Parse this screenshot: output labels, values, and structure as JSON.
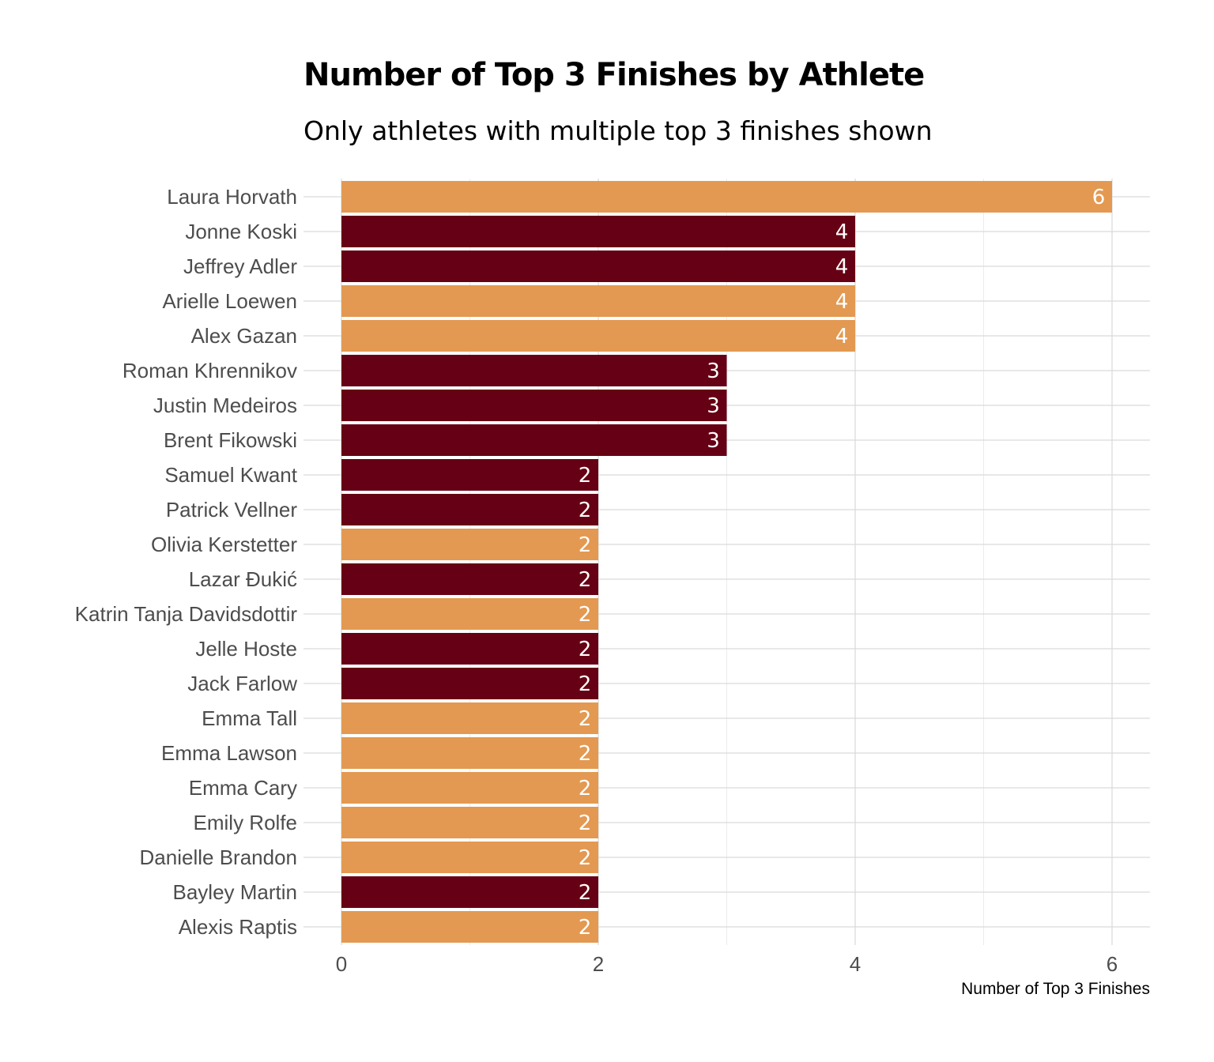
{
  "chart_data": {
    "type": "bar",
    "orientation": "horizontal",
    "title": "Number of Top 3 Finishes by Athlete",
    "subtitle": "Only athletes with multiple top 3 finishes shown",
    "xlabel": "Number of Top 3 Finishes",
    "ylabel": "",
    "xlim": [
      0,
      6.3
    ],
    "xticks": [
      0,
      2,
      4,
      6
    ],
    "grid": true,
    "legend": "none",
    "colors": {
      "women": "#e39951",
      "men": "#660014"
    },
    "categories": [
      "Laura Horvath",
      "Jonne Koski",
      "Jeffrey Adler",
      "Arielle Loewen",
      "Alex Gazan",
      "Roman Khrennikov",
      "Justin Medeiros",
      "Brent Fikowski",
      "Samuel Kwant",
      "Patrick Vellner",
      "Olivia Kerstetter",
      "Lazar Đukić",
      "Katrin Tanja Davidsdottir",
      "Jelle Hoste",
      "Jack Farlow",
      "Emma Tall",
      "Emma Lawson",
      "Emma Cary",
      "Emily Rolfe",
      "Danielle Brandon",
      "Bayley Martin",
      "Alexis Raptis"
    ],
    "values": [
      6,
      4,
      4,
      4,
      4,
      3,
      3,
      3,
      2,
      2,
      2,
      2,
      2,
      2,
      2,
      2,
      2,
      2,
      2,
      2,
      2,
      2
    ],
    "groups": [
      "women",
      "men",
      "men",
      "women",
      "women",
      "men",
      "men",
      "men",
      "men",
      "men",
      "women",
      "men",
      "women",
      "men",
      "men",
      "women",
      "women",
      "women",
      "women",
      "women",
      "men",
      "women"
    ]
  }
}
